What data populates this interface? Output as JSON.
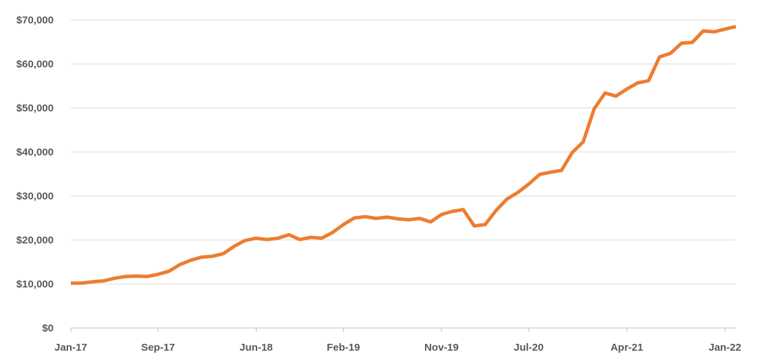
{
  "chart_data": {
    "type": "line",
    "title": "",
    "xlabel": "",
    "ylabel": "",
    "ylim": [
      0,
      70000
    ],
    "yticks": [
      {
        "value": 0,
        "label": "$0"
      },
      {
        "value": 10000,
        "label": "$10,000"
      },
      {
        "value": 20000,
        "label": "$20,000"
      },
      {
        "value": 30000,
        "label": "$30,000"
      },
      {
        "value": 40000,
        "label": "$40,000"
      },
      {
        "value": 50000,
        "label": "$50,000"
      },
      {
        "value": 60000,
        "label": "$60,000"
      },
      {
        "value": 70000,
        "label": "$70,000"
      }
    ],
    "xticks": [
      {
        "date": "2017-01",
        "label": "Jan-17"
      },
      {
        "date": "2017-09",
        "label": "Sep-17"
      },
      {
        "date": "2018-06",
        "label": "Jun-18"
      },
      {
        "date": "2019-02",
        "label": "Feb-19"
      },
      {
        "date": "2019-11",
        "label": "Nov-19"
      },
      {
        "date": "2020-07",
        "label": "Jul-20"
      },
      {
        "date": "2021-04",
        "label": "Apr-21"
      },
      {
        "date": "2022-01",
        "label": "Jan-22"
      }
    ],
    "grid": true,
    "line_color": "#ED7D31",
    "series": [
      {
        "x": [
          "2017-01",
          "2017-02",
          "2017-03",
          "2017-04",
          "2017-05",
          "2017-06",
          "2017-07",
          "2017-08",
          "2017-09",
          "2017-10",
          "2017-11",
          "2017-12",
          "2018-01",
          "2018-02",
          "2018-03",
          "2018-04",
          "2018-05",
          "2018-06",
          "2018-07",
          "2018-08",
          "2018-09",
          "2018-10",
          "2018-11",
          "2018-12",
          "2019-01",
          "2019-02",
          "2019-03",
          "2019-04",
          "2019-05",
          "2019-06",
          "2019-07",
          "2019-08",
          "2019-09",
          "2019-10",
          "2019-11",
          "2019-12",
          "2020-01",
          "2020-02",
          "2020-03",
          "2020-04",
          "2020-05",
          "2020-06",
          "2020-07",
          "2020-08",
          "2020-09",
          "2020-10",
          "2020-11",
          "2020-12",
          "2021-01",
          "2021-02",
          "2021-03",
          "2021-04",
          "2021-05",
          "2021-06",
          "2021-07",
          "2021-08",
          "2021-09",
          "2021-10",
          "2021-11",
          "2021-12",
          "2022-01",
          "2022-02"
        ],
        "values": [
          10200,
          10200,
          10500,
          10700,
          11300,
          11700,
          11800,
          11700,
          12200,
          12900,
          14400,
          15400,
          16100,
          16300,
          16900,
          18600,
          19900,
          20400,
          20100,
          20400,
          21200,
          20100,
          20600,
          20400,
          21700,
          23500,
          25000,
          25300,
          24900,
          25200,
          24800,
          24600,
          24900,
          24100,
          25800,
          26500,
          26900,
          23200,
          23500,
          26700,
          29300,
          30800,
          32700,
          34900,
          35400,
          35800,
          39900,
          42300,
          49800,
          53400,
          52700,
          54300,
          55700,
          56200,
          61600,
          62400,
          64700,
          64900,
          67500,
          67300,
          67900,
          68500
        ]
      }
    ]
  }
}
